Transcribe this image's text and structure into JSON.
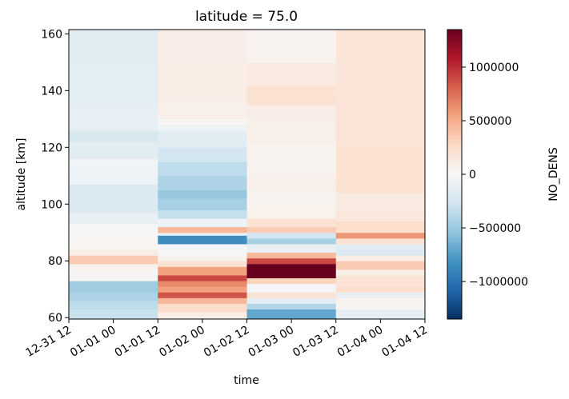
{
  "chart_data": {
    "type": "heatmap",
    "title": "latitude = 75.0",
    "xlabel": "time",
    "ylabel": "altitude [km]",
    "colorbar_label": "NO_DENS",
    "colormap": "RdBu_r",
    "vmin": -1350000,
    "vmax": 1350000,
    "x_tick_labels": [
      "12-31 12",
      "01-01 00",
      "01-01 12",
      "01-02 00",
      "01-02 12",
      "01-03 00",
      "01-03 12",
      "01-04 00",
      "01-04 12"
    ],
    "y_ticks": [
      60,
      80,
      100,
      120,
      140,
      160
    ],
    "ylim": [
      59.5,
      161.5
    ],
    "colorbar_ticks": [
      {
        "value": 1000000,
        "label": "1000000"
      },
      {
        "value": 500000,
        "label": "500000"
      },
      {
        "value": 0,
        "label": "0"
      },
      {
        "value": -500000,
        "label": "−500000"
      },
      {
        "value": -1000000,
        "label": "−1000000"
      }
    ],
    "columns": [
      {
        "time_start": "12-31 12",
        "time_end": "01-01 12",
        "segments": [
          [
            59.5,
            63,
            -300000
          ],
          [
            63,
            66,
            -350000
          ],
          [
            66,
            69,
            -420000
          ],
          [
            69,
            73,
            -480000
          ],
          [
            73,
            77,
            20000
          ],
          [
            77,
            79,
            60000
          ],
          [
            79,
            82,
            350000
          ],
          [
            82,
            84,
            100000
          ],
          [
            84,
            88,
            30000
          ],
          [
            88,
            93,
            10000
          ],
          [
            93,
            97,
            -100000
          ],
          [
            97,
            107,
            -200000
          ],
          [
            107,
            112,
            -80000
          ],
          [
            112,
            116,
            -40000
          ],
          [
            116,
            122,
            -150000
          ],
          [
            122,
            126,
            -220000
          ],
          [
            126,
            135,
            -120000
          ],
          [
            135,
            150,
            -140000
          ],
          [
            150,
            161.5,
            -150000
          ]
        ]
      },
      {
        "time_start": "01-01 12",
        "time_end": "01-02 12",
        "segments": [
          [
            59.5,
            62,
            100000
          ],
          [
            62,
            65,
            250000
          ],
          [
            65,
            67,
            450000
          ],
          [
            67,
            69,
            850000
          ],
          [
            69,
            71,
            550000
          ],
          [
            71,
            73,
            650000
          ],
          [
            73,
            75,
            900000
          ],
          [
            75,
            78,
            550000
          ],
          [
            78,
            80,
            200000
          ],
          [
            80,
            82,
            50000
          ],
          [
            82,
            84,
            -20000
          ],
          [
            84,
            86,
            -30000
          ],
          [
            86,
            89,
            -850000
          ],
          [
            89,
            90,
            -100000
          ],
          [
            90,
            92,
            450000
          ],
          [
            92,
            95,
            -80000
          ],
          [
            95,
            98,
            -320000
          ],
          [
            98,
            102,
            -450000
          ],
          [
            102,
            105,
            -520000
          ],
          [
            105,
            110,
            -420000
          ],
          [
            110,
            115,
            -350000
          ],
          [
            115,
            120,
            -250000
          ],
          [
            120,
            126,
            -150000
          ],
          [
            126,
            128,
            -70000
          ],
          [
            128,
            130,
            20000
          ],
          [
            130,
            137,
            80000
          ],
          [
            137,
            150,
            100000
          ],
          [
            150,
            161.5,
            90000
          ]
        ]
      },
      {
        "time_start": "01-02 12",
        "time_end": "01-03 12",
        "segments": [
          [
            59.5,
            63,
            -700000
          ],
          [
            63,
            65,
            -400000
          ],
          [
            65,
            67,
            -150000
          ],
          [
            67,
            69,
            200000
          ],
          [
            69,
            72,
            -30000
          ],
          [
            72,
            74,
            300000
          ],
          [
            74,
            79,
            1350000
          ],
          [
            79,
            81,
            900000
          ],
          [
            81,
            83,
            450000
          ],
          [
            83,
            86,
            -100000
          ],
          [
            86,
            88,
            -450000
          ],
          [
            88,
            90,
            -250000
          ],
          [
            90,
            92,
            350000
          ],
          [
            92,
            95,
            200000
          ],
          [
            95,
            100,
            60000
          ],
          [
            100,
            105,
            40000
          ],
          [
            105,
            110,
            70000
          ],
          [
            110,
            122,
            50000
          ],
          [
            122,
            130,
            80000
          ],
          [
            130,
            135,
            90000
          ],
          [
            135,
            142,
            200000
          ],
          [
            142,
            150,
            120000
          ],
          [
            150,
            161.5,
            40000
          ]
        ]
      },
      {
        "time_start": "01-03 12",
        "time_end": "01-04 12",
        "segments": [
          [
            59.5,
            63,
            -120000
          ],
          [
            63,
            67,
            40000
          ],
          [
            67,
            69,
            -100000
          ],
          [
            69,
            71,
            250000
          ],
          [
            71,
            75,
            180000
          ],
          [
            75,
            77,
            80000
          ],
          [
            77,
            80,
            350000
          ],
          [
            80,
            82,
            100000
          ],
          [
            82,
            84,
            -200000
          ],
          [
            84,
            86,
            -150000
          ],
          [
            86,
            88,
            200000
          ],
          [
            88,
            90,
            600000
          ],
          [
            90,
            94,
            250000
          ],
          [
            94,
            98,
            150000
          ],
          [
            98,
            104,
            120000
          ],
          [
            104,
            120,
            200000
          ],
          [
            120,
            140,
            180000
          ],
          [
            140,
            161.5,
            170000
          ]
        ]
      }
    ]
  }
}
